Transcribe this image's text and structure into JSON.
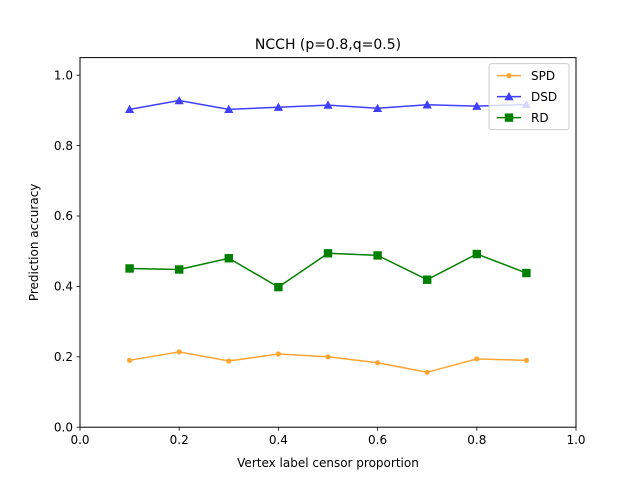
{
  "chart_data": {
    "type": "line",
    "title": "NCCH (p=0.8,q=0.5)",
    "xlabel": "Vertex label censor proportion",
    "ylabel": "Prediction accuracy",
    "xlim": [
      0.0,
      1.0
    ],
    "ylim": [
      0.0,
      1.05
    ],
    "xticks": [
      "0.0",
      "0.2",
      "0.4",
      "0.6",
      "0.8",
      "1.0"
    ],
    "xtick_values": [
      0.0,
      0.2,
      0.4,
      0.6,
      0.8,
      1.0
    ],
    "yticks": [
      "0.0",
      "0.2",
      "0.4",
      "0.6",
      "0.8",
      "1.0"
    ],
    "ytick_values": [
      0.0,
      0.2,
      0.4,
      0.6,
      0.8,
      1.0
    ],
    "grid": false,
    "legend_position": "top-right",
    "x": [
      0.1,
      0.2,
      0.3,
      0.4,
      0.5,
      0.6,
      0.7,
      0.8,
      0.9
    ],
    "series": [
      {
        "name": "SPD",
        "color": "#ffa533",
        "marker": "dot",
        "values": [
          0.19,
          0.214,
          0.188,
          0.208,
          0.2,
          0.183,
          0.156,
          0.194,
          0.19
        ]
      },
      {
        "name": "DSD",
        "color": "#3f3fff",
        "marker": "triangle",
        "values": [
          0.903,
          0.928,
          0.903,
          0.909,
          0.915,
          0.906,
          0.916,
          0.912,
          0.917
        ]
      },
      {
        "name": "RD",
        "color": "#008000",
        "marker": "square",
        "values": [
          0.451,
          0.448,
          0.48,
          0.398,
          0.494,
          0.488,
          0.419,
          0.492,
          0.438
        ]
      }
    ]
  }
}
